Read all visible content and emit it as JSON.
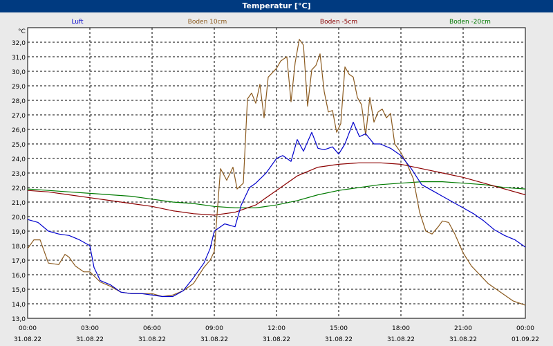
{
  "title": "Temperatur [°C]",
  "chart_data": {
    "type": "line",
    "title": "Temperatur [°C]",
    "ylabel": "°C",
    "ylim": [
      13.0,
      33.0
    ],
    "yticks": [
      13.0,
      14.0,
      15.0,
      16.0,
      17.0,
      18.0,
      19.0,
      20.0,
      21.0,
      22.0,
      23.0,
      24.0,
      25.0,
      26.0,
      27.0,
      28.0,
      29.0,
      30.0,
      31.0,
      32.0
    ],
    "ytick_labels": [
      "13,0",
      "14,0",
      "15,0",
      "16,0",
      "17,0",
      "18,0",
      "19,0",
      "20,0",
      "21,0",
      "22,0",
      "23,0",
      "24,0",
      "25,0",
      "26,0",
      "27,0",
      "28,0",
      "29,0",
      "30,0",
      "31,0",
      "32,0"
    ],
    "xlim": [
      0,
      24
    ],
    "xticks": [
      0,
      3,
      6,
      9,
      12,
      15,
      18,
      21,
      24
    ],
    "xtick_times": [
      "00:00",
      "03:00",
      "06:00",
      "09:00",
      "12:00",
      "15:00",
      "18:00",
      "21:00",
      "00:00"
    ],
    "xtick_dates": [
      "31.08.22",
      "31.08.22",
      "31.08.22",
      "31.08.22",
      "31.08.22",
      "31.08.22",
      "31.08.22",
      "31.08.22",
      "01.09.22"
    ],
    "grid": true,
    "legend_position": "top",
    "series": [
      {
        "name": "Luft",
        "color": "#0000cc",
        "x": [
          0,
          0.5,
          1,
          1.5,
          2,
          2.5,
          3,
          3.2,
          3.5,
          4,
          4.5,
          5,
          5.5,
          6,
          6.5,
          7,
          7.5,
          8,
          8.5,
          8.8,
          9,
          9.5,
          10,
          10.3,
          10.7,
          11,
          11.5,
          12,
          12.3,
          12.7,
          13,
          13.3,
          13.7,
          14,
          14.3,
          14.7,
          15,
          15.3,
          15.7,
          16,
          16.3,
          16.7,
          17,
          17.5,
          18,
          18.5,
          19,
          19.5,
          20,
          20.5,
          21,
          21.5,
          22,
          22.5,
          23,
          23.5,
          24
        ],
        "values": [
          19.8,
          19.6,
          19.0,
          18.8,
          18.7,
          18.4,
          18.0,
          16.5,
          15.6,
          15.3,
          14.8,
          14.7,
          14.7,
          14.6,
          14.5,
          14.5,
          14.9,
          15.8,
          16.8,
          17.8,
          19.0,
          19.5,
          19.3,
          20.8,
          22.0,
          22.3,
          23.0,
          24.0,
          24.2,
          23.8,
          25.3,
          24.5,
          25.8,
          24.7,
          24.6,
          24.8,
          24.3,
          25.0,
          26.5,
          25.5,
          25.7,
          25.0,
          25.0,
          24.7,
          24.2,
          23.3,
          22.2,
          21.8,
          21.4,
          21.0,
          20.6,
          20.2,
          19.7,
          19.1,
          18.7,
          18.4,
          17.9
        ]
      },
      {
        "name": "Boden 10cm",
        "color": "#8b5a1e",
        "x": [
          0,
          0.3,
          0.6,
          1,
          1.5,
          1.8,
          2,
          2.3,
          2.7,
          3,
          3.5,
          4,
          4.5,
          5,
          5.5,
          6,
          6.5,
          7,
          7.5,
          8,
          8.5,
          8.8,
          9,
          9.3,
          9.6,
          9.9,
          10.1,
          10.4,
          10.6,
          10.8,
          11,
          11.2,
          11.4,
          11.6,
          11.8,
          12,
          12.2,
          12.5,
          12.7,
          12.9,
          13.1,
          13.3,
          13.5,
          13.7,
          13.9,
          14.1,
          14.3,
          14.5,
          14.7,
          14.9,
          15.1,
          15.3,
          15.5,
          15.7,
          15.9,
          16.1,
          16.3,
          16.5,
          16.7,
          16.9,
          17.1,
          17.3,
          17.5,
          17.7,
          18,
          18.3,
          18.6,
          18.9,
          19.2,
          19.5,
          19.8,
          20,
          20.3,
          20.6,
          21,
          21.4,
          21.8,
          22.2,
          22.6,
          23,
          23.4,
          23.8,
          24
        ],
        "values": [
          17.8,
          18.4,
          18.4,
          16.8,
          16.7,
          17.4,
          17.2,
          16.6,
          16.2,
          16.2,
          15.5,
          15.2,
          14.8,
          14.7,
          14.7,
          14.7,
          14.5,
          14.6,
          14.9,
          15.4,
          16.5,
          17.0,
          17.6,
          23.3,
          22.5,
          23.4,
          21.9,
          22.3,
          28.1,
          28.5,
          27.8,
          29.1,
          26.8,
          29.6,
          29.9,
          30.2,
          30.7,
          31.0,
          27.9,
          30.6,
          32.2,
          31.8,
          27.6,
          30.1,
          30.4,
          31.2,
          28.6,
          27.2,
          27.3,
          25.8,
          26.4,
          30.3,
          29.8,
          29.6,
          28.2,
          27.7,
          25.6,
          28.2,
          26.5,
          27.2,
          27.4,
          26.8,
          27.1,
          25.0,
          24.4,
          23.6,
          22.6,
          20.3,
          19.0,
          18.8,
          19.3,
          19.7,
          19.6,
          18.8,
          17.5,
          16.6,
          16.0,
          15.4,
          15.0,
          14.6,
          14.2,
          14.0,
          13.9
        ]
      },
      {
        "name": "Boden -5cm",
        "color": "#8b0000",
        "x": [
          0,
          1,
          2,
          3,
          4,
          5,
          6,
          7,
          8,
          9,
          10,
          11,
          12,
          13,
          14,
          15,
          16,
          17,
          18,
          19,
          20,
          21,
          22,
          23,
          24
        ],
        "values": [
          21.8,
          21.7,
          21.5,
          21.3,
          21.1,
          20.9,
          20.7,
          20.4,
          20.2,
          20.1,
          20.3,
          20.8,
          21.8,
          22.8,
          23.4,
          23.6,
          23.7,
          23.7,
          23.6,
          23.3,
          23.0,
          22.7,
          22.3,
          21.9,
          21.5
        ]
      },
      {
        "name": "Boden -20cm",
        "color": "#007a00",
        "x": [
          0,
          1,
          2,
          3,
          4,
          5,
          6,
          7,
          8,
          9,
          10,
          11,
          12,
          13,
          14,
          15,
          16,
          17,
          18,
          19,
          20,
          21,
          22,
          23,
          24
        ],
        "values": [
          21.9,
          21.8,
          21.7,
          21.6,
          21.5,
          21.4,
          21.2,
          21.0,
          20.9,
          20.7,
          20.6,
          20.6,
          20.8,
          21.1,
          21.5,
          21.8,
          22.0,
          22.2,
          22.3,
          22.4,
          22.4,
          22.3,
          22.2,
          22.0,
          21.9
        ]
      }
    ]
  }
}
